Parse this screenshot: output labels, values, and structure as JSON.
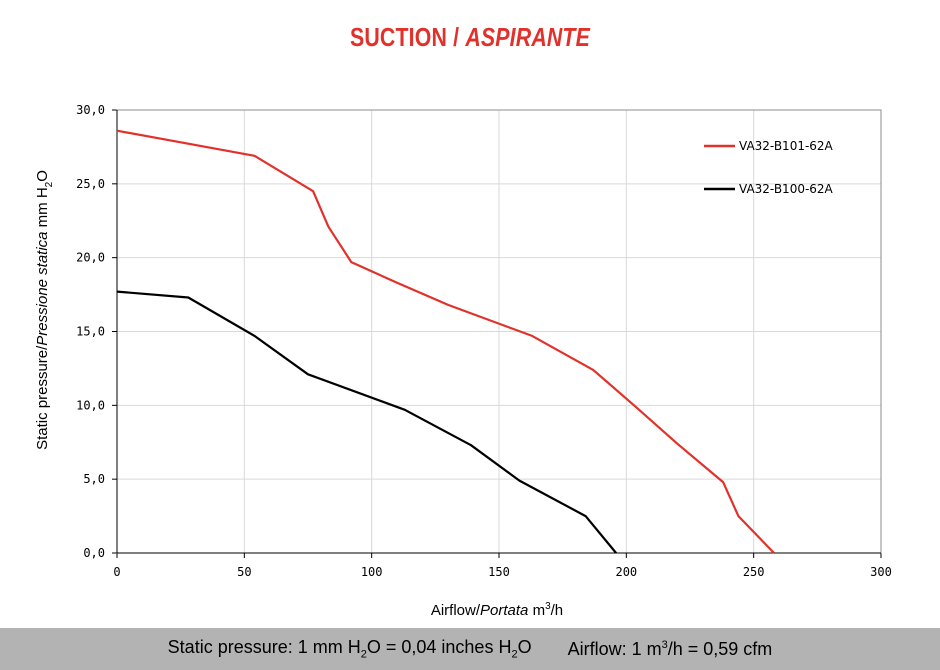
{
  "title": {
    "main": "SUCTION /",
    "italic": "ASPIRANTE"
  },
  "colors": {
    "title": "#e2312a",
    "red_series": "#e2312a",
    "black_series": "#000000",
    "footer_bg": "#b3b3b3",
    "grid": "#d9d9d9"
  },
  "chart_data": {
    "type": "line",
    "xlabel": {
      "main": "Airflow",
      "italic": "Portata",
      "unit_pre": "m",
      "unit_sup": "3",
      "unit_post": "/h"
    },
    "ylabel": {
      "main": "Static pressure",
      "italic": "Pressione statica",
      "unit_pre": "mm  H",
      "unit_sub": "2",
      "unit_post": "O"
    },
    "xlim": [
      0,
      300
    ],
    "ylim": [
      0,
      30
    ],
    "x_ticks": [
      "0",
      "50",
      "100",
      "150",
      "200",
      "250",
      "300"
    ],
    "y_ticks": [
      "0,0",
      "5,0",
      "10,0",
      "15,0",
      "20,0",
      "25,0",
      "30,0"
    ],
    "grid": true,
    "legend_position": "top-right",
    "series": [
      {
        "name": "VA32-B101-62A",
        "color": "#e2312a",
        "x": [
          0,
          54,
          77,
          83,
          92,
          110,
          130,
          163,
          187,
          203,
          220,
          238,
          244,
          258
        ],
        "y": [
          28.6,
          26.9,
          24.5,
          22.1,
          19.7,
          18.3,
          16.8,
          14.7,
          12.4,
          10.0,
          7.4,
          4.8,
          2.5,
          0.0
        ]
      },
      {
        "name": "VA32-B100-62A",
        "color": "#000000",
        "x": [
          0,
          28,
          54,
          75,
          113,
          139,
          158,
          184,
          196
        ],
        "y": [
          17.7,
          17.3,
          14.7,
          12.1,
          9.7,
          7.3,
          4.9,
          2.5,
          0.0
        ]
      }
    ]
  },
  "footer": {
    "pressure_a": "Static pressure: 1 mm H",
    "pressure_sub1": "2",
    "pressure_b": "O = 0,04 inches H",
    "pressure_sub2": "2",
    "pressure_c": "O",
    "airflow_a": "Airflow: 1 m",
    "airflow_sup": "3",
    "airflow_b": "/h = 0,59 cfm"
  }
}
